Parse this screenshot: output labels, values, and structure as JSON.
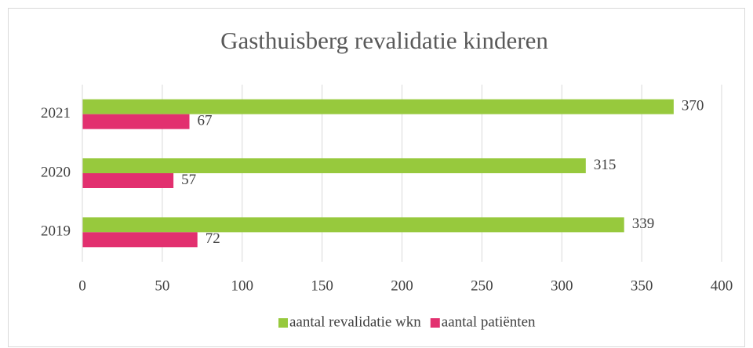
{
  "chart_data": {
    "type": "hbar",
    "title": "Gasthuisberg revalidatie kinderen",
    "categories": [
      "2019",
      "2020",
      "2021"
    ],
    "series": [
      {
        "name": "aantal revalidatie wkn",
        "color": "#97c93d",
        "values": [
          339,
          315,
          370
        ]
      },
      {
        "name": "aantal patiënten",
        "color": "#e2306f",
        "values": [
          72,
          57,
          67
        ]
      }
    ],
    "xlim": [
      0,
      400
    ],
    "xticks": [
      0,
      50,
      100,
      150,
      200,
      250,
      300,
      350,
      400
    ],
    "grid": true,
    "legend": "bottom"
  }
}
